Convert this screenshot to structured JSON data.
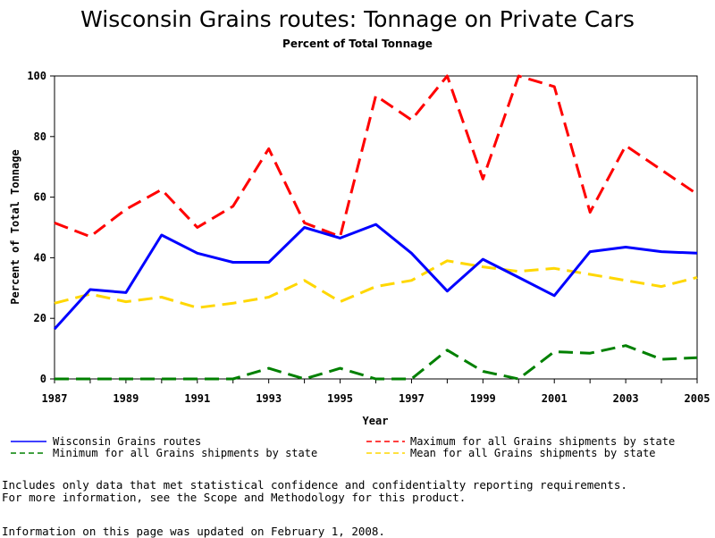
{
  "chart_data": {
    "type": "line",
    "title": "Wisconsin Grains routes: Tonnage on Private Cars",
    "subtitle": "Percent of Total Tonnage",
    "xlabel": "Year",
    "ylabel": "Percent of Total Tonnage",
    "xlim": [
      1987,
      2005
    ],
    "ylim": [
      0,
      100
    ],
    "x_ticks": [
      "1987",
      "1989",
      "1991",
      "1993",
      "1995",
      "1997",
      "1999",
      "2001",
      "2003",
      "2005"
    ],
    "y_ticks": [
      "0",
      "20",
      "40",
      "60",
      "80",
      "100"
    ],
    "grid": false,
    "legend_position": "bottom",
    "x": [
      1987,
      1988,
      1989,
      1990,
      1991,
      1992,
      1993,
      1994,
      1995,
      1996,
      1997,
      1998,
      1999,
      2000,
      2001,
      2002,
      2003,
      2004,
      2005
    ],
    "series": [
      {
        "name": "Wisconsin Grains routes",
        "color": "#0000ff",
        "style": "solid",
        "values": [
          16.5,
          29.5,
          28.5,
          47.5,
          41.5,
          38.5,
          38.5,
          50,
          46.5,
          51,
          41.5,
          29,
          39.5,
          33.5,
          27.5,
          42,
          43.5,
          42,
          41.5
        ]
      },
      {
        "name": "Maximum for all Grains shipments by state",
        "color": "#ff0000",
        "style": "dashed",
        "values": [
          51.5,
          47,
          56,
          62.5,
          50,
          57,
          76,
          51.5,
          47,
          93.5,
          85.5,
          100,
          66,
          100,
          96.5,
          55,
          77,
          69,
          61
        ]
      },
      {
        "name": "Minimum for all Grains shipments by state",
        "color": "#008000",
        "style": "dashed",
        "values": [
          0,
          0,
          0,
          0,
          0,
          0,
          3.5,
          0,
          3.5,
          0,
          0,
          9.5,
          2.5,
          0,
          9,
          8.5,
          11,
          6.5,
          7
        ]
      },
      {
        "name": "Mean for all Grains shipments by state",
        "color": "#ffd700",
        "style": "dashed",
        "values": [
          25,
          28,
          25.5,
          27,
          23.5,
          25,
          27,
          32.5,
          25.5,
          30.5,
          32.5,
          39,
          37,
          35.5,
          36.5,
          34.5,
          32.5,
          30.5,
          33.5
        ]
      }
    ]
  },
  "notes": {
    "line1": "Includes only data that met statistical confidence and confidentialty reporting requirements.",
    "line2": "For more information, see the Scope and Methodology for this product.",
    "updated": "Information on this page was updated on February 1, 2008."
  }
}
